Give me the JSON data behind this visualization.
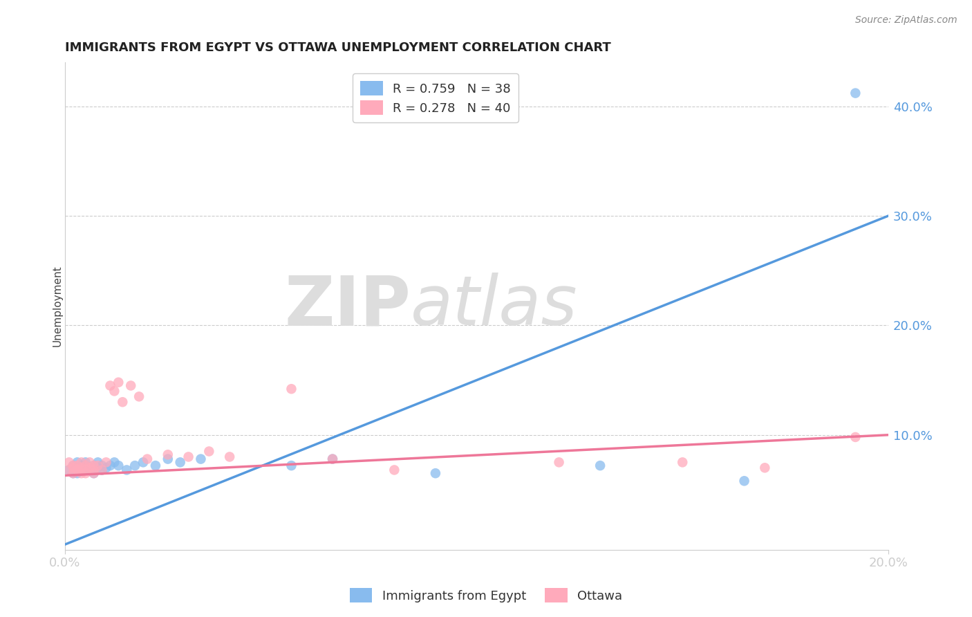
{
  "title": "IMMIGRANTS FROM EGYPT VS OTTAWA UNEMPLOYMENT CORRELATION CHART",
  "source": "Source: ZipAtlas.com",
  "ylabel": "Unemployment",
  "y_tick_values": [
    0.1,
    0.2,
    0.3,
    0.4
  ],
  "xlim": [
    0.0,
    0.2
  ],
  "ylim": [
    -0.005,
    0.44
  ],
  "legend1_label": "R = 0.759   N = 38",
  "legend2_label": "R = 0.278   N = 40",
  "legend_bottom_label1": "Immigrants from Egypt",
  "legend_bottom_label2": "Ottawa",
  "blue_color": "#88BBEE",
  "pink_color": "#FFAABB",
  "blue_line_color": "#5599DD",
  "pink_line_color": "#EE7799",
  "background_color": "#FFFFFF",
  "watermark_text1": "ZIP",
  "watermark_text2": "atlas",
  "blue_scatter_x": [
    0.001,
    0.002,
    0.002,
    0.003,
    0.003,
    0.003,
    0.004,
    0.004,
    0.004,
    0.005,
    0.005,
    0.005,
    0.006,
    0.006,
    0.007,
    0.007,
    0.007,
    0.008,
    0.008,
    0.009,
    0.009,
    0.01,
    0.011,
    0.012,
    0.013,
    0.015,
    0.017,
    0.019,
    0.022,
    0.025,
    0.028,
    0.033,
    0.055,
    0.065,
    0.09,
    0.13,
    0.165,
    0.192
  ],
  "blue_scatter_y": [
    0.068,
    0.072,
    0.065,
    0.075,
    0.07,
    0.065,
    0.068,
    0.072,
    0.07,
    0.068,
    0.072,
    0.075,
    0.068,
    0.07,
    0.065,
    0.072,
    0.068,
    0.075,
    0.07,
    0.072,
    0.068,
    0.07,
    0.072,
    0.075,
    0.072,
    0.068,
    0.072,
    0.075,
    0.072,
    0.078,
    0.075,
    0.078,
    0.072,
    0.078,
    0.065,
    0.072,
    0.058,
    0.412
  ],
  "pink_scatter_x": [
    0.001,
    0.001,
    0.002,
    0.002,
    0.002,
    0.003,
    0.003,
    0.003,
    0.004,
    0.004,
    0.004,
    0.005,
    0.005,
    0.005,
    0.006,
    0.006,
    0.007,
    0.007,
    0.007,
    0.008,
    0.009,
    0.01,
    0.011,
    0.012,
    0.013,
    0.014,
    0.016,
    0.018,
    0.02,
    0.025,
    0.03,
    0.035,
    0.04,
    0.055,
    0.065,
    0.08,
    0.12,
    0.15,
    0.17,
    0.192
  ],
  "pink_scatter_y": [
    0.068,
    0.075,
    0.07,
    0.065,
    0.072,
    0.068,
    0.072,
    0.068,
    0.075,
    0.07,
    0.065,
    0.072,
    0.068,
    0.065,
    0.07,
    0.075,
    0.072,
    0.065,
    0.068,
    0.072,
    0.068,
    0.075,
    0.145,
    0.14,
    0.148,
    0.13,
    0.145,
    0.135,
    0.078,
    0.082,
    0.08,
    0.085,
    0.08,
    0.142,
    0.078,
    0.068,
    0.075,
    0.075,
    0.07,
    0.098
  ],
  "blue_line_x0": 0.0,
  "blue_line_y0": 0.0,
  "blue_line_x1": 0.2,
  "blue_line_y1": 0.3,
  "pink_line_x0": 0.0,
  "pink_line_y0": 0.063,
  "pink_line_x1": 0.2,
  "pink_line_y1": 0.1
}
